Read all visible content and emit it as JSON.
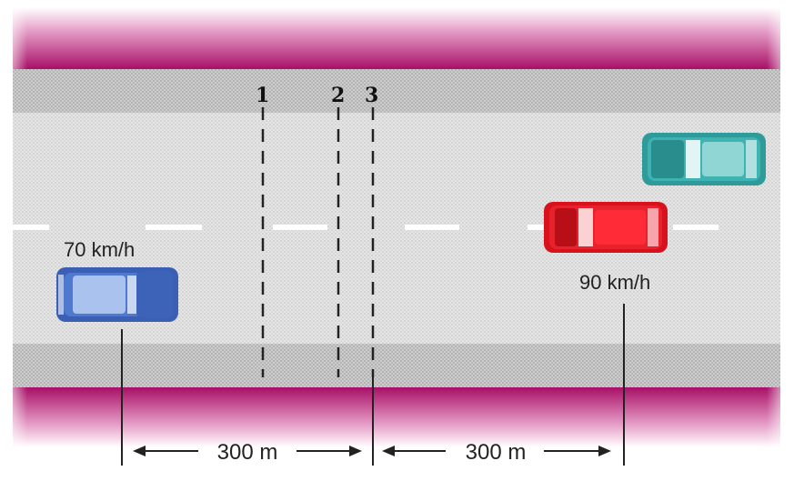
{
  "markers": [
    "1",
    "2",
    "3"
  ],
  "cars": {
    "left": {
      "speed_label": "70 km/h",
      "color": "#3a5fb5"
    },
    "right": {
      "speed_label": "90 km/h",
      "color": "#e01b24"
    },
    "top_right": {
      "color": "#2e9a9a"
    }
  },
  "distances": {
    "left": "300 m",
    "right": "300 m"
  },
  "colors": {
    "verge": "#b0156e",
    "road": "#e4e4e4",
    "shoulder": "#cfcfcf",
    "lane_dash": "#ffffff"
  }
}
